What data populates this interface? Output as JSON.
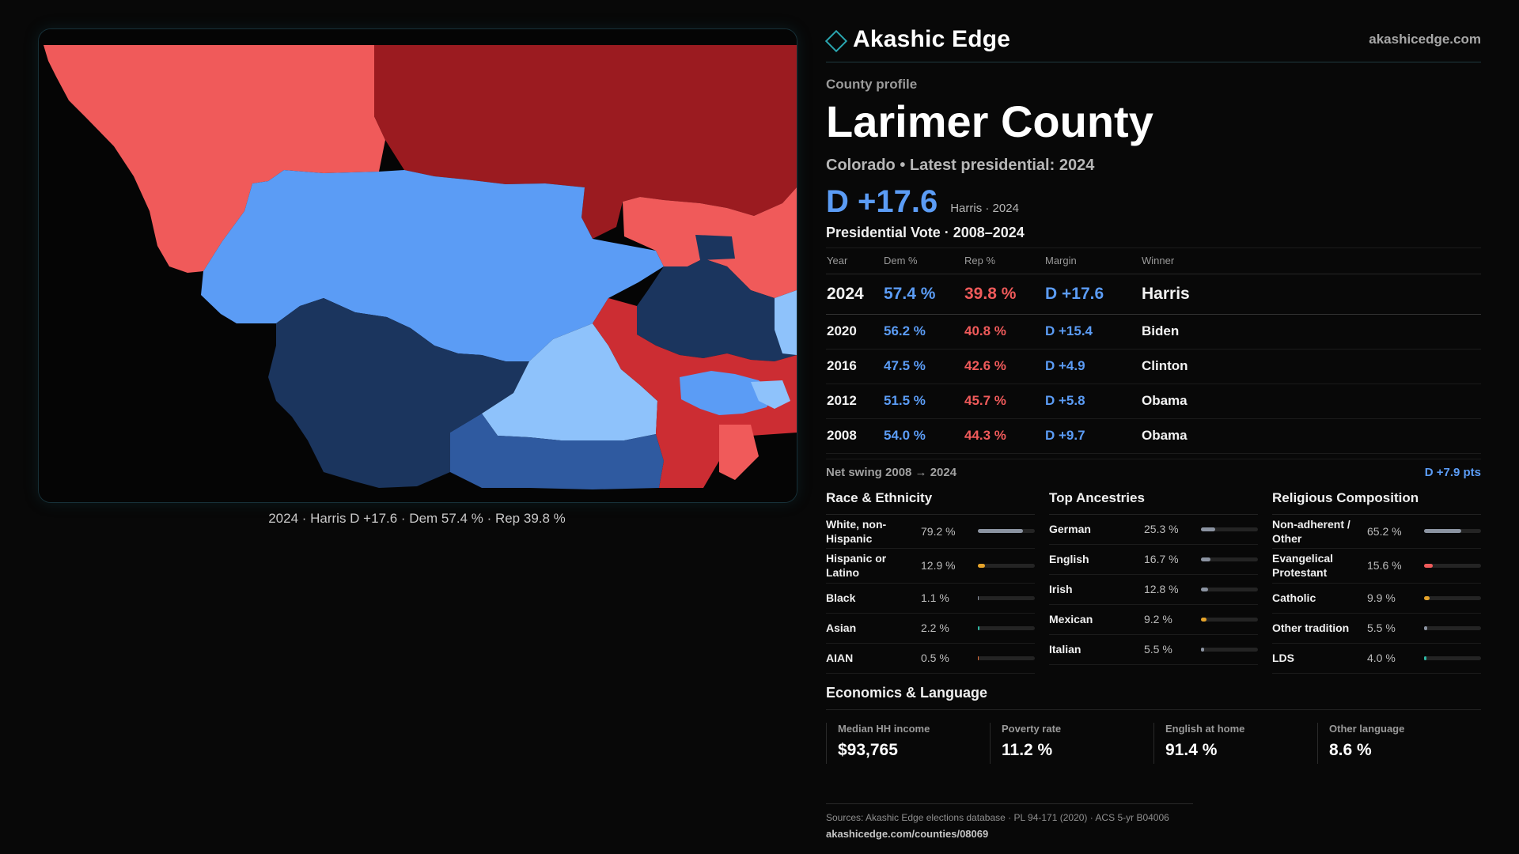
{
  "header": {
    "brand": "Akashic Edge",
    "site": "akashicedge.com"
  },
  "profile": {
    "eyebrow": "County profile",
    "title": "Larimer County",
    "subtitle": "Colorado • Latest presidential: 2024",
    "margin": "D +17.6",
    "margin_note": "Harris · 2024"
  },
  "map": {
    "caption": "2024 · Harris D +17.6 · Dem 57.4 % · Rep 39.8 %",
    "colors": {
      "safe_r": "#9b1b20",
      "lean_r": "#f05a5a",
      "likely_r": "#cc2d33",
      "light_d": "#8ec2fb",
      "lean_d": "#5b9cf5",
      "mid_d": "#2f5aa0",
      "safe_d": "#1b355e",
      "land_bg": "#050505"
    }
  },
  "votes": {
    "title": "Presidential Vote · 2008–2024",
    "headers": {
      "year": "Year",
      "dem": "Dem %",
      "rep": "Rep %",
      "margin": "Margin",
      "winner": "Winner"
    },
    "rows": [
      {
        "year": "2024",
        "dem": "57.4 %",
        "rep": "39.8 %",
        "margin": "D +17.6",
        "winner": "Harris"
      },
      {
        "year": "2020",
        "dem": "56.2 %",
        "rep": "40.8 %",
        "margin": "D +15.4",
        "winner": "Biden"
      },
      {
        "year": "2016",
        "dem": "47.5 %",
        "rep": "42.6 %",
        "margin": "D +4.9",
        "winner": "Clinton"
      },
      {
        "year": "2012",
        "dem": "51.5 %",
        "rep": "45.7 %",
        "margin": "D +5.8",
        "winner": "Obama"
      },
      {
        "year": "2008",
        "dem": "54.0 %",
        "rep": "44.3 %",
        "margin": "D +9.7",
        "winner": "Obama"
      }
    ],
    "swing_label": "Net swing 2008 → 2024",
    "swing_value": "D +7.9 pts"
  },
  "race": {
    "title": "Race & Ethnicity",
    "items": [
      {
        "label": "White, non-Hispanic",
        "pct": "79.2 %",
        "value": 79.2,
        "color": "#8b93a1"
      },
      {
        "label": "Hispanic or Latino",
        "pct": "12.9 %",
        "value": 12.9,
        "color": "#e5a32a"
      },
      {
        "label": "Black",
        "pct": "1.1 %",
        "value": 1.1,
        "color": "#8b93a1"
      },
      {
        "label": "Asian",
        "pct": "2.2 %",
        "value": 2.2,
        "color": "#2fb7a3"
      },
      {
        "label": "AIAN",
        "pct": "0.5 %",
        "value": 0.5,
        "color": "#e06c3a"
      }
    ]
  },
  "ancestry": {
    "title": "Top Ancestries",
    "items": [
      {
        "label": "German",
        "pct": "25.3 %",
        "value": 25.3,
        "color": "#8b93a1"
      },
      {
        "label": "English",
        "pct": "16.7 %",
        "value": 16.7,
        "color": "#8b93a1"
      },
      {
        "label": "Irish",
        "pct": "12.8 %",
        "value": 12.8,
        "color": "#8b93a1"
      },
      {
        "label": "Mexican",
        "pct": "9.2 %",
        "value": 9.2,
        "color": "#e5a32a"
      },
      {
        "label": "Italian",
        "pct": "5.5 %",
        "value": 5.5,
        "color": "#8b93a1"
      }
    ]
  },
  "religion": {
    "title": "Religious Composition",
    "items": [
      {
        "label": "Non-adherent / Other",
        "pct": "65.2 %",
        "value": 65.2,
        "color": "#8b93a1"
      },
      {
        "label": "Evangelical Protestant",
        "pct": "15.6 %",
        "value": 15.6,
        "color": "#ef5a5a"
      },
      {
        "label": "Catholic",
        "pct": "9.9 %",
        "value": 9.9,
        "color": "#e5a32a"
      },
      {
        "label": "Other tradition",
        "pct": "5.5 %",
        "value": 5.5,
        "color": "#8b93a1"
      },
      {
        "label": "LDS",
        "pct": "4.0 %",
        "value": 4.0,
        "color": "#2fb7a3"
      }
    ]
  },
  "economics": {
    "title": "Economics & Language",
    "items": [
      {
        "label": "Median HH income",
        "value": "$93,765"
      },
      {
        "label": "Poverty rate",
        "value": "11.2 %"
      },
      {
        "label": "English at home",
        "value": "91.4 %"
      },
      {
        "label": "Other language",
        "value": "8.6 %"
      }
    ]
  },
  "footer": {
    "sources": "Sources: Akashic Edge elections database · PL 94-171 (2020) · ACS 5-yr B04006",
    "url": "akashicedge.com/counties/08069"
  }
}
